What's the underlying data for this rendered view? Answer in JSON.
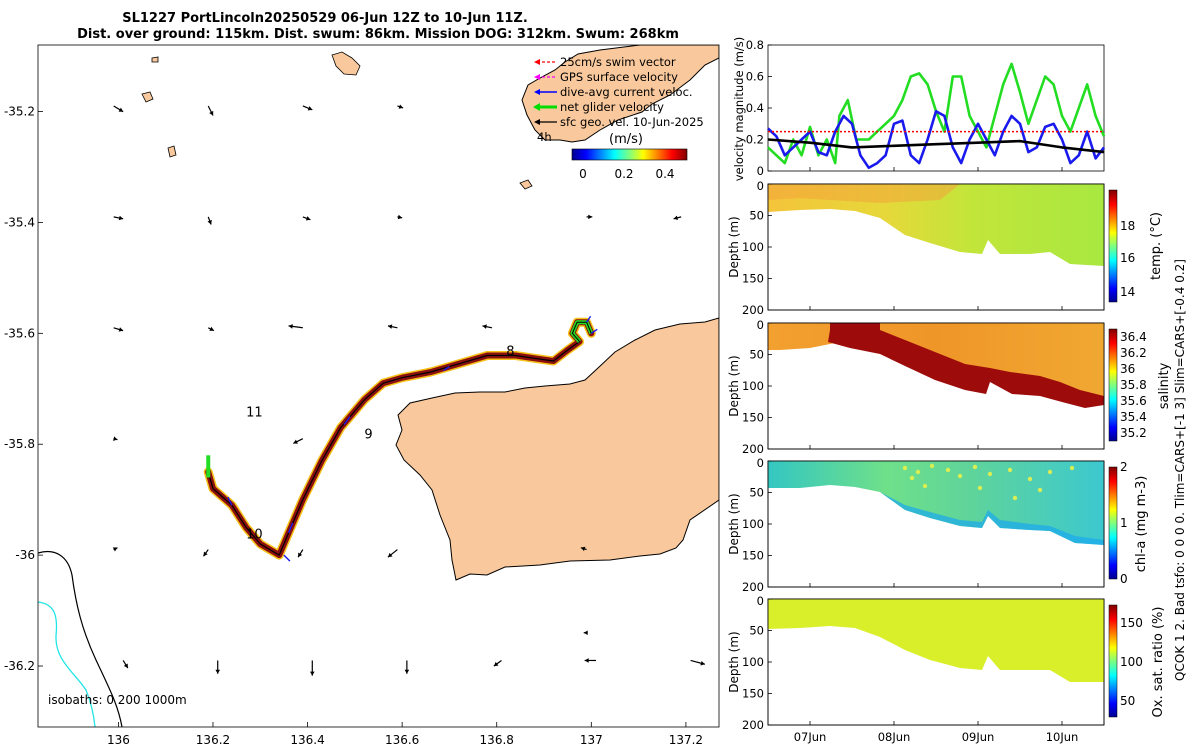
{
  "chart_data": [
    {
      "type": "map",
      "title_line1": "SL1227 PortLincoln20250529 06-Jun 12Z to 10-Jun 11Z.",
      "title_line2": "Dist. over ground: 115km. Dist. swum: 86km. Mission DOG: 312km. Swum: 268km",
      "xlabel": "",
      "ylabel": "",
      "xlim": [
        135.83,
        137.27
      ],
      "ylim": [
        -36.31,
        -35.08
      ],
      "x_ticks": [
        136,
        136.2,
        136.4,
        136.6,
        136.8,
        137,
        137.2
      ],
      "x_tick_labels": [
        "136",
        "136.2",
        "136.4",
        "136.6",
        "136.8",
        "137",
        "137.2"
      ],
      "y_ticks": [
        -35.2,
        -35.4,
        -35.6,
        -35.8,
        -36,
        -36.2
      ],
      "y_tick_labels": [
        "-35.2",
        "-35.4",
        "-35.6",
        "-35.8",
        "-36",
        "-36.2"
      ],
      "legend": [
        "25cm/s swim vector",
        "GPS surface velocity",
        "dive-avg current veloc.",
        "net glider velocity",
        "sfc geo. vel. 10-Jun-2025"
      ],
      "legend_colors": [
        "#ff0000",
        "#ff00ff",
        "#0000ff",
        "#00dd00",
        "#000000"
      ],
      "legend_extra": "4h",
      "colorbar_label": "(m/s)",
      "colorbar_ticks": [
        "0",
        "0.2",
        "0.4"
      ],
      "colorbar_range": [
        -0.05,
        0.5
      ],
      "isobath_label": "isobaths: 0   200  1000m",
      "day_labels": [
        {
          "text": "8",
          "lon": 136.82,
          "lat": -35.64
        },
        {
          "text": "9",
          "lon": 136.52,
          "lat": -35.79
        },
        {
          "text": "10",
          "lon": 136.27,
          "lat": -35.97
        },
        {
          "text": "11",
          "lon": 136.27,
          "lat": -35.75
        }
      ],
      "track": [
        [
          136.19,
          -35.85
        ],
        [
          136.2,
          -35.88
        ],
        [
          136.24,
          -35.91
        ],
        [
          136.27,
          -35.95
        ],
        [
          136.3,
          -35.98
        ],
        [
          136.34,
          -36.0
        ],
        [
          136.36,
          -35.96
        ],
        [
          136.39,
          -35.9
        ],
        [
          136.43,
          -35.83
        ],
        [
          136.47,
          -35.77
        ],
        [
          136.52,
          -35.72
        ],
        [
          136.56,
          -35.69
        ],
        [
          136.6,
          -35.68
        ],
        [
          136.66,
          -35.67
        ],
        [
          136.72,
          -35.655
        ],
        [
          136.78,
          -35.64
        ],
        [
          136.84,
          -35.64
        ],
        [
          136.88,
          -35.645
        ],
        [
          136.92,
          -35.65
        ],
        [
          136.95,
          -35.63
        ],
        [
          136.975,
          -35.615
        ],
        [
          136.96,
          -35.6
        ],
        [
          136.97,
          -35.58
        ],
        [
          136.99,
          -35.58
        ],
        [
          137.0,
          -35.6
        ]
      ],
      "sfc_vectors": [
        {
          "lon": 135.99,
          "lat": -35.19,
          "u": 0.1,
          "v": -0.06
        },
        {
          "lon": 136.19,
          "lat": -35.19,
          "u": 0.05,
          "v": -0.1
        },
        {
          "lon": 136.39,
          "lat": -35.19,
          "u": 0.1,
          "v": -0.04
        },
        {
          "lon": 136.59,
          "lat": -35.19,
          "u": 0.06,
          "v": -0.02
        },
        {
          "lon": 135.99,
          "lat": -35.39,
          "u": 0.1,
          "v": -0.02
        },
        {
          "lon": 136.19,
          "lat": -35.39,
          "u": 0.03,
          "v": -0.08
        },
        {
          "lon": 136.39,
          "lat": -35.39,
          "u": 0.08,
          "v": -0.03
        },
        {
          "lon": 136.59,
          "lat": -35.39,
          "u": 0.05,
          "v": -0.01
        },
        {
          "lon": 136.99,
          "lat": -35.39,
          "u": 0.06,
          "v": 0.0
        },
        {
          "lon": 137.19,
          "lat": -35.39,
          "u": -0.08,
          "v": -0.02
        },
        {
          "lon": 135.99,
          "lat": -35.59,
          "u": 0.1,
          "v": -0.03
        },
        {
          "lon": 136.19,
          "lat": -35.59,
          "u": 0.06,
          "v": -0.03
        },
        {
          "lon": 136.39,
          "lat": -35.59,
          "u": -0.15,
          "v": 0.02
        },
        {
          "lon": 136.59,
          "lat": -35.59,
          "u": -0.1,
          "v": 0.02
        },
        {
          "lon": 136.79,
          "lat": -35.59,
          "u": -0.1,
          "v": 0.02
        },
        {
          "lon": 135.99,
          "lat": -35.79,
          "u": 0.04,
          "v": -0.01
        },
        {
          "lon": 136.39,
          "lat": -35.79,
          "u": -0.1,
          "v": -0.05
        },
        {
          "lon": 135.99,
          "lat": -35.99,
          "u": 0.04,
          "v": 0.02
        },
        {
          "lon": 136.19,
          "lat": -35.99,
          "u": -0.05,
          "v": -0.07
        },
        {
          "lon": 136.39,
          "lat": -35.99,
          "u": -0.05,
          "v": -0.08
        },
        {
          "lon": 136.59,
          "lat": -35.99,
          "u": -0.1,
          "v": -0.08
        },
        {
          "lon": 136.99,
          "lat": -35.99,
          "u": -0.06,
          "v": 0.02
        },
        {
          "lon": 136.99,
          "lat": -36.14,
          "u": -0.03,
          "v": 0.0
        },
        {
          "lon": 136.01,
          "lat": -36.19,
          "u": 0.05,
          "v": -0.08
        },
        {
          "lon": 136.21,
          "lat": -36.19,
          "u": 0.0,
          "v": -0.14
        },
        {
          "lon": 136.41,
          "lat": -36.19,
          "u": 0.0,
          "v": -0.16
        },
        {
          "lon": 136.61,
          "lat": -36.19,
          "u": 0.0,
          "v": -0.14
        },
        {
          "lon": 136.81,
          "lat": -36.19,
          "u": -0.08,
          "v": -0.06
        },
        {
          "lon": 137.01,
          "lat": -36.19,
          "u": -0.12,
          "v": 0.0
        },
        {
          "lon": 137.21,
          "lat": -36.19,
          "u": 0.15,
          "v": -0.04
        }
      ]
    },
    {
      "type": "line",
      "ylabel": "velocity magnitude (m/s)",
      "ylim": [
        0,
        0.8
      ],
      "y_ticks": [
        "0",
        "0.2",
        "0.4",
        "0.6",
        "0.8"
      ],
      "x_range_days": [
        6.5,
        10.5
      ],
      "series": [
        {
          "name": "net glider velocity",
          "color": "#22dd22",
          "x": [
            6.5,
            6.6,
            6.7,
            6.8,
            6.9,
            7.0,
            7.1,
            7.2,
            7.3,
            7.35,
            7.45,
            7.55,
            7.7,
            7.8,
            7.9,
            8.0,
            8.1,
            8.2,
            8.3,
            8.4,
            8.5,
            8.6,
            8.7,
            8.8,
            8.9,
            9.0,
            9.1,
            9.2,
            9.3,
            9.4,
            9.5,
            9.6,
            9.7,
            9.8,
            9.9,
            10.0,
            10.1,
            10.2,
            10.3,
            10.4,
            10.5
          ],
          "y": [
            0.15,
            0.1,
            0.05,
            0.2,
            0.1,
            0.28,
            0.1,
            0.2,
            0.05,
            0.35,
            0.45,
            0.2,
            0.2,
            0.25,
            0.3,
            0.35,
            0.45,
            0.6,
            0.62,
            0.55,
            0.38,
            0.25,
            0.6,
            0.6,
            0.35,
            0.25,
            0.15,
            0.35,
            0.55,
            0.68,
            0.5,
            0.3,
            0.45,
            0.6,
            0.55,
            0.35,
            0.25,
            0.4,
            0.55,
            0.35,
            0.22
          ]
        },
        {
          "name": "dive-avg current veloc.",
          "color": "#1a1aee",
          "x": [
            6.5,
            6.6,
            6.7,
            6.8,
            6.9,
            7.0,
            7.1,
            7.2,
            7.3,
            7.4,
            7.5,
            7.6,
            7.7,
            7.8,
            7.9,
            8.0,
            8.1,
            8.2,
            8.3,
            8.4,
            8.5,
            8.6,
            8.7,
            8.8,
            8.9,
            9.0,
            9.1,
            9.2,
            9.3,
            9.4,
            9.5,
            9.6,
            9.7,
            9.8,
            9.9,
            10.0,
            10.1,
            10.2,
            10.3,
            10.4,
            10.5
          ],
          "y": [
            0.27,
            0.22,
            0.1,
            0.15,
            0.2,
            0.25,
            0.12,
            0.1,
            0.25,
            0.35,
            0.3,
            0.1,
            0.02,
            0.05,
            0.1,
            0.3,
            0.32,
            0.1,
            0.05,
            0.2,
            0.38,
            0.35,
            0.15,
            0.05,
            0.2,
            0.3,
            0.2,
            0.1,
            0.25,
            0.35,
            0.3,
            0.12,
            0.15,
            0.28,
            0.3,
            0.2,
            0.05,
            0.1,
            0.25,
            0.08,
            0.15
          ]
        },
        {
          "name": "sfc geo. vel.",
          "color": "#000000",
          "x": [
            6.5,
            7.0,
            7.5,
            8.0,
            8.5,
            9.0,
            9.5,
            10.0,
            10.5
          ],
          "y": [
            0.2,
            0.18,
            0.15,
            0.16,
            0.17,
            0.18,
            0.19,
            0.15,
            0.12
          ]
        },
        {
          "name": "25cm/s swim vector",
          "color": "#ff0000",
          "x": [
            6.5,
            10.5
          ],
          "y": [
            0.25,
            0.25
          ]
        }
      ]
    },
    {
      "type": "heatmap",
      "variable": "temperature",
      "ylabel": "Depth (m)",
      "cbar_label": "temp. (°C)",
      "cbar_ticks": [
        "14",
        "16",
        "18"
      ],
      "cbar_range": [
        13,
        20
      ],
      "depth_ticks": [
        "0",
        "50",
        "100",
        "150",
        "200"
      ],
      "bottom_depth": [
        [
          6.5,
          42
        ],
        [
          7.0,
          40
        ],
        [
          7.5,
          45
        ],
        [
          7.75,
          55
        ],
        [
          8.0,
          72
        ],
        [
          8.5,
          90
        ],
        [
          9.0,
          108
        ],
        [
          9.5,
          110
        ],
        [
          9.8,
          118
        ],
        [
          10.0,
          128
        ],
        [
          10.5,
          132
        ]
      ]
    },
    {
      "type": "heatmap",
      "variable": "salinity",
      "ylabel": "Depth (m)",
      "cbar_label": "salinity",
      "cbar_ticks": [
        "35.2",
        "35.4",
        "35.6",
        "35.8",
        "36",
        "36.2",
        "36.4"
      ],
      "cbar_range": [
        35.1,
        36.5
      ],
      "depth_ticks": [
        "0",
        "50",
        "100",
        "150",
        "200"
      ]
    },
    {
      "type": "heatmap",
      "variable": "chl-a",
      "ylabel": "Depth (m)",
      "cbar_label": "chl-a (mg m-3)",
      "cbar_ticks": [
        "0",
        "1",
        "2"
      ],
      "cbar_range": [
        0,
        2
      ],
      "depth_ticks": [
        "0",
        "50",
        "100",
        "150",
        "200"
      ]
    },
    {
      "type": "heatmap",
      "variable": "oxygen saturation",
      "ylabel": "Depth (m)",
      "cbar_label": "Ox. sat. ratio (%)",
      "cbar_ticks": [
        "50",
        "100",
        "150"
      ],
      "cbar_range": [
        20,
        175
      ],
      "depth_ticks": [
        "0",
        "50",
        "100",
        "150",
        "200"
      ],
      "x_tick_labels": [
        "07Jun",
        "08Jun",
        "09Jun",
        "10Jun"
      ]
    }
  ],
  "side_note": "QCOK 1  2. Bad tsfo: 0  0  0  0. Tlim=CARS+[-1 3] Slim=CARS+[-0.4 0.2]"
}
